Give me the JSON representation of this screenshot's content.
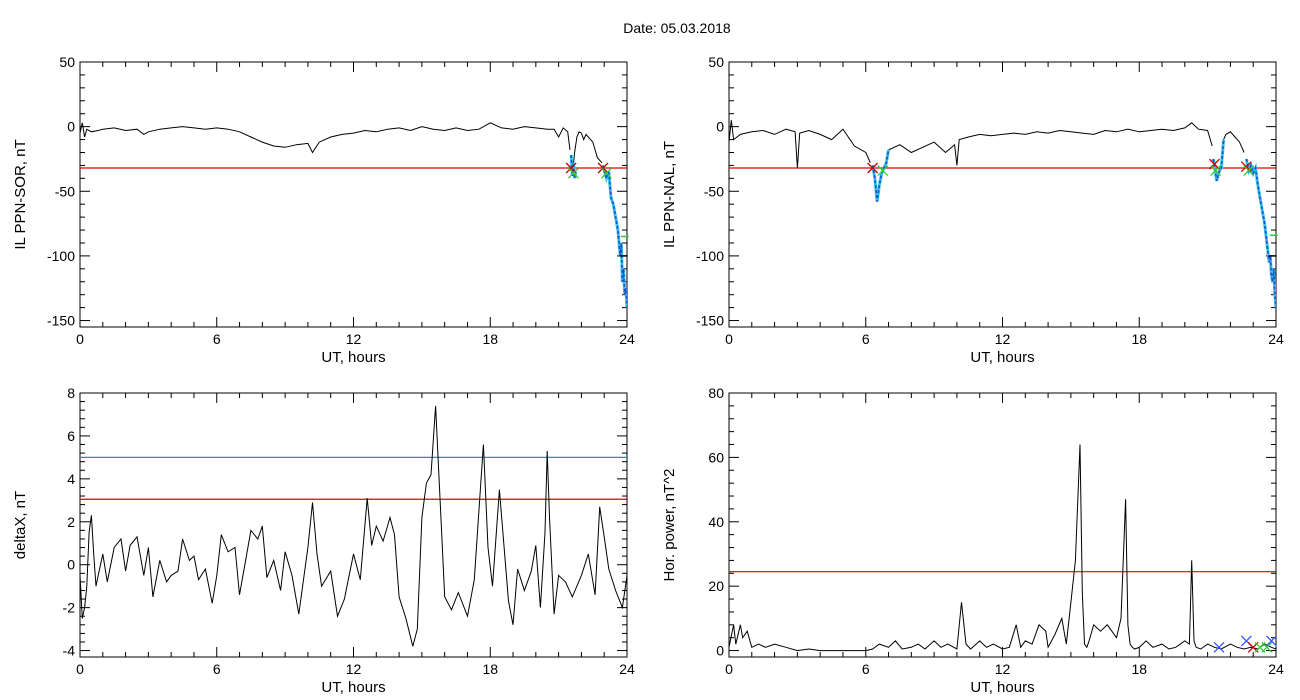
{
  "title": "Date:  05.03.2018",
  "colors": {
    "threshold_red": "#e00000",
    "threshold_teal": "#1a9a9a",
    "storm_blue": "#1c4fd8",
    "storm_cyan": "#35c6e6",
    "marker_green": "#33cc33",
    "marker_red": "#cc0000",
    "marker_blue": "#3355ff"
  },
  "chart_data": [
    {
      "id": "sor",
      "type": "line",
      "xlabel": "UT, hours",
      "ylabel": "IL PPN-SOR, nT",
      "xlim": [
        0,
        24
      ],
      "ylim": [
        -155,
        50
      ],
      "xticks": [
        0,
        6,
        12,
        18,
        24
      ],
      "yticks": [
        50,
        0,
        -50,
        -100,
        -150
      ],
      "threshold": -32,
      "series": [
        {
          "x": [
            0,
            0.1,
            0.2,
            0.3,
            0.5,
            0.8,
            1,
            1.5,
            2,
            2.5,
            2.8,
            3,
            3.5,
            4,
            4.5,
            5,
            5.5,
            6,
            6.5,
            7,
            7.5,
            8,
            8.5,
            9,
            9.5,
            10,
            10.2,
            10.5,
            11,
            11.5,
            12,
            12.5,
            13,
            13.5,
            14,
            14.5,
            15,
            15.5,
            16,
            16.5,
            17,
            17.5,
            18,
            18.5,
            19,
            19.5,
            20,
            20.5,
            20.8,
            21,
            21.2,
            21.4,
            21.5
          ],
          "y": [
            -5,
            3,
            -8,
            -2,
            -4,
            -3,
            -2,
            -1,
            -3,
            -2,
            -6,
            -4,
            -2,
            -1,
            0,
            -1,
            -2,
            -1,
            -2,
            -4,
            -8,
            -12,
            -15,
            -16,
            -14,
            -13,
            -20,
            -12,
            -8,
            -6,
            -5,
            -3,
            -4,
            -2,
            -1,
            -3,
            0,
            -2,
            -3,
            -1,
            -3,
            -2,
            3,
            -1,
            -2,
            0,
            -1,
            -2,
            -2,
            -8,
            -1,
            -4,
            -18
          ]
        },
        {
          "x": [
            21.6,
            21.7,
            21.8,
            21.9,
            22,
            22.1,
            22.2,
            22.3,
            22.5,
            22.6,
            22.7,
            22.9
          ],
          "y": [
            -38,
            -20,
            -8,
            -4,
            -5,
            -10,
            -6,
            -8,
            -12,
            -18,
            -24,
            -28
          ]
        }
      ],
      "storm_series": [
        {
          "x": [
            21.55,
            21.6,
            21.65,
            21.7,
            21.75
          ],
          "y": [
            -22,
            -38,
            -28,
            -40,
            -35
          ]
        },
        {
          "x": [
            22.95,
            23.0,
            23.1,
            23.2,
            23.3,
            23.4,
            23.5,
            23.6,
            23.7,
            23.75,
            23.8,
            23.85,
            23.9,
            23.95,
            24.0
          ],
          "y": [
            -30,
            -34,
            -40,
            -35,
            -55,
            -60,
            -70,
            -80,
            -100,
            -90,
            -120,
            -110,
            -130,
            -125,
            -140
          ]
        }
      ],
      "markers": [
        {
          "x": 21.55,
          "y": -32,
          "kind": "x",
          "color": "#cc0000"
        },
        {
          "x": 21.65,
          "y": -36,
          "kind": "x",
          "color": "#33cc33"
        },
        {
          "x": 22.95,
          "y": -32,
          "kind": "x",
          "color": "#cc0000"
        },
        {
          "x": 23.1,
          "y": -36,
          "kind": "x",
          "color": "#33cc33"
        },
        {
          "x": 23.9,
          "y": -85,
          "kind": "dash",
          "color": "#33cc33"
        },
        {
          "x": 23.85,
          "y": -100,
          "kind": "dash",
          "color": "#000000"
        }
      ]
    },
    {
      "id": "nal",
      "type": "line",
      "xlabel": "UT, hours",
      "ylabel": "IL PPN-NAL, nT",
      "xlim": [
        0,
        24
      ],
      "ylim": [
        -155,
        50
      ],
      "xticks": [
        0,
        6,
        12,
        18,
        24
      ],
      "yticks": [
        50,
        0,
        -50,
        -100,
        -150
      ],
      "threshold": -32,
      "series": [
        {
          "x": [
            0,
            0.1,
            0.2,
            0.5,
            1,
            1.5,
            2,
            2.5,
            2.9,
            3.0,
            3.1,
            3.5,
            4,
            4.5,
            5,
            5.5,
            6,
            6.2
          ],
          "y": [
            -12,
            5,
            -10,
            -6,
            -4,
            -3,
            -6,
            -2,
            -4,
            -32,
            -5,
            -3,
            -6,
            -10,
            -2,
            -15,
            -20,
            -28
          ]
        },
        {
          "x": [
            7.0,
            7.5,
            8,
            8.5,
            9,
            9.5,
            9.9,
            10.0,
            10.1,
            10.5,
            11,
            11.5,
            12,
            12.5,
            13,
            13.5,
            14,
            14.5,
            15,
            15.5,
            16,
            16.5,
            17,
            17.5,
            18,
            18.5,
            19,
            19.5,
            20,
            20.3,
            20.6,
            21,
            21.2
          ],
          "y": [
            -18,
            -14,
            -20,
            -16,
            -12,
            -20,
            -14,
            -30,
            -10,
            -8,
            -6,
            -7,
            -6,
            -5,
            -6,
            -4,
            -5,
            -3,
            -4,
            -5,
            -6,
            -3,
            -4,
            -2,
            -4,
            -3,
            -2,
            -3,
            -1,
            3,
            -2,
            -3,
            -15
          ]
        },
        {
          "x": [
            21.7,
            21.8,
            22,
            22.2,
            22.4,
            22.6
          ],
          "y": [
            -10,
            -6,
            -4,
            -8,
            -12,
            -20
          ]
        }
      ],
      "storm_series": [
        {
          "x": [
            6.3,
            6.4,
            6.5,
            6.6,
            6.7,
            6.8,
            6.9,
            7.0
          ],
          "y": [
            -30,
            -40,
            -58,
            -45,
            -36,
            -32,
            -28,
            -18
          ]
        },
        {
          "x": [
            21.25,
            21.3,
            21.4,
            21.5,
            21.6,
            21.7
          ],
          "y": [
            -25,
            -30,
            -42,
            -35,
            -32,
            -10
          ]
        },
        {
          "x": [
            22.7,
            22.8,
            22.9,
            23.0,
            23.1,
            23.2,
            23.3,
            23.4,
            23.5,
            23.6,
            23.7,
            23.75,
            23.8,
            23.85,
            23.9,
            23.95,
            24.0
          ],
          "y": [
            -25,
            -34,
            -30,
            -36,
            -32,
            -45,
            -55,
            -65,
            -75,
            -90,
            -105,
            -100,
            -115,
            -120,
            -110,
            -130,
            -140
          ]
        }
      ],
      "markers": [
        {
          "x": 6.3,
          "y": -32,
          "kind": "x",
          "color": "#cc0000"
        },
        {
          "x": 6.75,
          "y": -34,
          "kind": "x",
          "color": "#33cc33"
        },
        {
          "x": 21.3,
          "y": -29,
          "kind": "x",
          "color": "#cc0000"
        },
        {
          "x": 21.35,
          "y": -34,
          "kind": "x",
          "color": "#33cc33"
        },
        {
          "x": 22.7,
          "y": -31,
          "kind": "x",
          "color": "#cc0000"
        },
        {
          "x": 22.8,
          "y": -34,
          "kind": "x",
          "color": "#33cc33"
        },
        {
          "x": 23.9,
          "y": -84,
          "kind": "dash",
          "color": "#33cc33"
        },
        {
          "x": 23.85,
          "y": -100,
          "kind": "dash",
          "color": "#000000"
        }
      ]
    },
    {
      "id": "deltax",
      "type": "line",
      "xlabel": "UT, hours",
      "ylabel": "deltaX, nT",
      "xlim": [
        0,
        24
      ],
      "ylim": [
        -4.3,
        8
      ],
      "xticks": [
        0,
        6,
        12,
        18,
        24
      ],
      "yticks": [
        8,
        6,
        4,
        2,
        0,
        -2,
        -4
      ],
      "thresholds": [
        {
          "value": 5.0,
          "color": "#1a9a9a"
        },
        {
          "value": 3.05,
          "color": "#e00000"
        }
      ],
      "series": [
        {
          "x": [
            0,
            0.1,
            0.2,
            0.3,
            0.4,
            0.5,
            0.6,
            0.7,
            0.8,
            1,
            1.2,
            1.5,
            1.8,
            2,
            2.2,
            2.5,
            2.8,
            3,
            3.2,
            3.5,
            3.8,
            4,
            4.3,
            4.5,
            4.8,
            5,
            5.2,
            5.5,
            5.8,
            6,
            6.2,
            6.5,
            6.8,
            7,
            7.2,
            7.5,
            7.8,
            8,
            8.2,
            8.5,
            8.8,
            9,
            9.3,
            9.6,
            10,
            10.2,
            10.4,
            10.6,
            11,
            11.3,
            11.6,
            12,
            12.3,
            12.6,
            12.8,
            13,
            13.3,
            13.6,
            13.8,
            14,
            14.3,
            14.6,
            14.8,
            15,
            15.2,
            15.4,
            15.6,
            15.8,
            16,
            16.3,
            16.6,
            17,
            17.3,
            17.5,
            17.7,
            17.9,
            18.1,
            18.4,
            18.8,
            19,
            19.2,
            19.5,
            19.8,
            20,
            20.2,
            20.4,
            20.5,
            20.6,
            20.8,
            21,
            21.3,
            21.6,
            22,
            22.3,
            22.6,
            22.8,
            23,
            23.2,
            23.5,
            23.8,
            24
          ],
          "y": [
            -0.5,
            -2.5,
            -2,
            -1,
            1.5,
            2.3,
            0.5,
            -1,
            -0.5,
            0.5,
            -0.8,
            0.8,
            1.2,
            -0.3,
            0.9,
            1.3,
            -0.5,
            0.8,
            -1.5,
            0.2,
            -0.8,
            -0.5,
            -0.3,
            1.2,
            0.2,
            0.4,
            -0.7,
            -0.2,
            -1.8,
            -0.5,
            1.4,
            0.6,
            0.8,
            -1.4,
            -0.2,
            1.6,
            1.2,
            1.8,
            -0.6,
            0.2,
            -1.2,
            0.6,
            -0.5,
            -2.3,
            0.8,
            2.9,
            0.5,
            -1,
            -0.3,
            -2.4,
            -1.6,
            0.5,
            -0.7,
            3.1,
            0.9,
            1.8,
            1.1,
            2.2,
            1.4,
            -1.5,
            -2.5,
            -3.8,
            -3,
            2.2,
            3.8,
            4.2,
            7.4,
            3,
            -1.5,
            -2.1,
            -1.3,
            -2.4,
            -0.7,
            2.5,
            5.6,
            0.8,
            -1,
            3.5,
            -1.7,
            -2.8,
            -0.2,
            -1.2,
            -0.3,
            0.9,
            -2,
            1.5,
            5.3,
            2.2,
            -2.3,
            -0.5,
            -0.8,
            -1.5,
            -0.5,
            0.5,
            -1.4,
            2.7,
            1.3,
            -0.2,
            -1.2,
            -2,
            -0.5
          ]
        }
      ]
    },
    {
      "id": "power",
      "type": "line",
      "xlabel": "UT, hours",
      "ylabel": "Hor. power, nT^2",
      "xlim": [
        0,
        24
      ],
      "ylim": [
        -2,
        80
      ],
      "xticks": [
        0,
        6,
        12,
        18,
        24
      ],
      "yticks": [
        80,
        60,
        40,
        20,
        0
      ],
      "thresholds": [
        {
          "value": 24.5,
          "color": "#e00000"
        }
      ],
      "series": [
        {
          "x": [
            0,
            0.2,
            0.3,
            0.5,
            0.6,
            0.8,
            1,
            1.3,
            1.6,
            2,
            2.5,
            3,
            3.5,
            4,
            4.5,
            5,
            5.5,
            6,
            6.3,
            6.6,
            7,
            7.3,
            7.6,
            8,
            8.3,
            8.6,
            9,
            9.3,
            9.6,
            10,
            10.2,
            10.4,
            10.6,
            11,
            11.3,
            11.6,
            12,
            12.3,
            12.6,
            12.8,
            13,
            13.3,
            13.6,
            13.9,
            14,
            14.3,
            14.6,
            14.8,
            15,
            15.2,
            15.4,
            15.5,
            15.6,
            15.7,
            15.8,
            16,
            16.3,
            16.6,
            17,
            17.2,
            17.4,
            17.5,
            17.6,
            17.7,
            17.8,
            18,
            18.3,
            18.6,
            19,
            19.3,
            19.6,
            20,
            20.2,
            20.3,
            20.4,
            20.5,
            20.7,
            21,
            21.3,
            21.6,
            22,
            22.3,
            22.6,
            22.9,
            23.2,
            23.5,
            23.8,
            24
          ],
          "y": [
            1,
            8,
            2,
            8,
            4,
            6,
            1,
            2,
            1,
            2,
            1,
            0,
            0.5,
            0,
            0,
            0,
            0,
            0,
            0.5,
            2,
            1,
            3,
            0.5,
            1,
            2,
            0.5,
            3,
            1,
            2,
            0.5,
            15,
            2,
            0.5,
            3,
            1,
            2,
            0.5,
            1,
            8,
            1,
            3,
            2,
            8,
            6,
            1,
            5,
            10,
            2,
            15,
            28,
            64,
            18,
            2,
            1,
            3,
            8,
            6,
            8,
            4,
            10,
            47,
            8,
            2,
            1,
            0.5,
            1,
            3,
            1,
            2,
            0.5,
            1,
            3,
            2,
            28,
            3,
            1,
            0.5,
            2,
            1,
            0.5,
            2,
            1,
            0.5,
            1,
            0.5,
            2,
            1,
            0.5
          ]
        }
      ],
      "markers": [
        {
          "x": 21.5,
          "y": 1,
          "kind": "x",
          "color": "#3355ff"
        },
        {
          "x": 22.7,
          "y": 3,
          "kind": "x",
          "color": "#3355ff"
        },
        {
          "x": 23.0,
          "y": 1,
          "kind": "x",
          "color": "#cc0000"
        },
        {
          "x": 23.3,
          "y": 1,
          "kind": "x",
          "color": "#33cc33"
        },
        {
          "x": 23.6,
          "y": 1,
          "kind": "x",
          "color": "#33cc33"
        },
        {
          "x": 23.8,
          "y": 3,
          "kind": "x",
          "color": "#3355ff"
        }
      ]
    }
  ]
}
